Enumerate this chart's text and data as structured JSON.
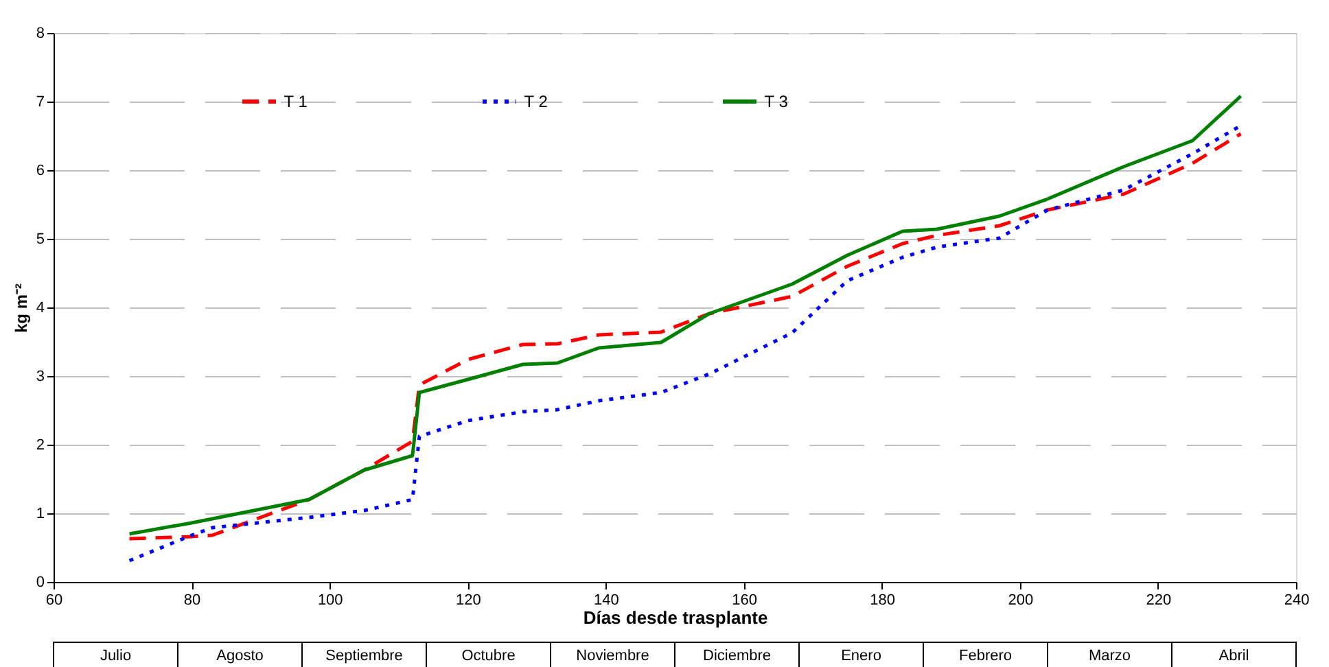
{
  "chart_data": {
    "type": "line",
    "xlabel": "Días desde trasplante",
    "ylabel": "kg m⁻²",
    "x": [
      71,
      80,
      83,
      97,
      105,
      112,
      113,
      120,
      128,
      133,
      139,
      148,
      155,
      167,
      175,
      183,
      188,
      197,
      204,
      215,
      225,
      232
    ],
    "series": [
      {
        "name": "T 1",
        "color": "#ff0000",
        "line_style": "dashed",
        "values": [
          0.63,
          0.66,
          0.68,
          1.2,
          1.63,
          2.05,
          2.87,
          3.24,
          3.46,
          3.47,
          3.6,
          3.64,
          3.91,
          4.16,
          4.6,
          4.93,
          5.05,
          5.19,
          5.42,
          5.65,
          6.1,
          6.53
        ]
      },
      {
        "name": "T 2",
        "color": "#0000ff",
        "line_style": "dotted",
        "values": [
          0.31,
          0.68,
          0.79,
          0.94,
          1.04,
          1.2,
          2.12,
          2.35,
          2.48,
          2.51,
          2.64,
          2.76,
          3.03,
          3.63,
          4.39,
          4.73,
          4.88,
          5.01,
          5.42,
          5.71,
          6.24,
          6.65
        ]
      },
      {
        "name": "T 3",
        "color": "#008000",
        "line_style": "solid",
        "values": [
          0.7,
          0.86,
          0.92,
          1.2,
          1.63,
          1.84,
          2.76,
          2.95,
          3.17,
          3.19,
          3.41,
          3.49,
          3.91,
          4.34,
          4.76,
          5.11,
          5.14,
          5.33,
          5.58,
          6.05,
          6.43,
          7.08
        ]
      }
    ],
    "xlim": [
      60,
      240
    ],
    "xticks": [
      60,
      80,
      100,
      120,
      140,
      160,
      180,
      200,
      220,
      240
    ],
    "ylim": [
      0,
      8
    ],
    "yticks": [
      0,
      1,
      2,
      3,
      4,
      5,
      6,
      7,
      8
    ],
    "grid": "y",
    "legend": "top",
    "annotations": [
      "Julio",
      "Agosto",
      "Septiembre",
      "Octubre",
      "Noviembre",
      "Diciembre",
      "Enero",
      "Febrero",
      "Marzo",
      "Abril"
    ]
  }
}
